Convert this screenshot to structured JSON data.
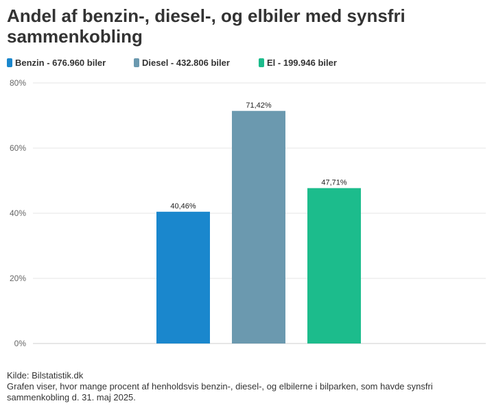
{
  "chart_data": {
    "type": "bar",
    "title": "Andel af benzin-, diesel-, og elbiler med synsfri sammenkobling",
    "xlabel": "",
    "ylabel": "",
    "ylim": [
      0,
      80
    ],
    "yticks": [
      0,
      20,
      40,
      60,
      80
    ],
    "ytick_labels": [
      "0%",
      "20%",
      "40%",
      "60%",
      "80%"
    ],
    "grid": true,
    "legend_position": "top-left",
    "series": [
      {
        "name": "Benzin - 676.960 biler",
        "color": "#1a87cd",
        "value": 40.46,
        "label": "40,46%"
      },
      {
        "name": "Diesel - 432.806 biler",
        "color": "#6b99af",
        "value": 71.42,
        "label": "71,42%"
      },
      {
        "name": "El - 199.946 biler",
        "color": "#1cbc8c",
        "value": 47.71,
        "label": "47,71%"
      }
    ]
  },
  "footer": {
    "source": "Kilde: Bilstatistik.dk",
    "description": "Grafen viser, hvor mange procent af henholdsvis benzin-, diesel-, og elbilerne i bilparken, som havde synsfri sammenkobling d. 31. maj 2025."
  }
}
